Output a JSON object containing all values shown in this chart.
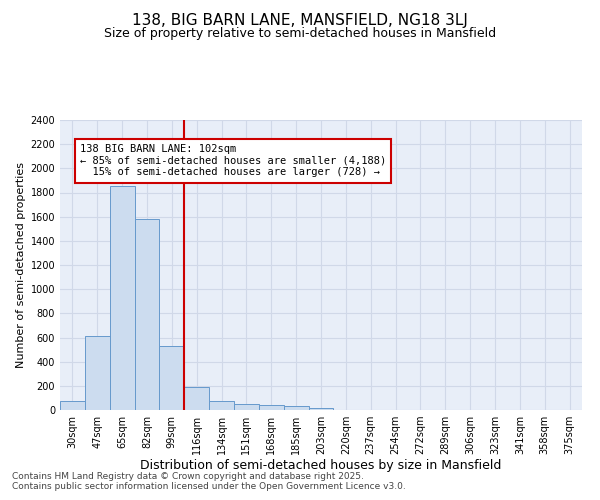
{
  "title1": "138, BIG BARN LANE, MANSFIELD, NG18 3LJ",
  "title2": "Size of property relative to semi-detached houses in Mansfield",
  "xlabel": "Distribution of semi-detached houses by size in Mansfield",
  "ylabel": "Number of semi-detached properties",
  "categories": [
    "30sqm",
    "47sqm",
    "65sqm",
    "82sqm",
    "99sqm",
    "116sqm",
    "134sqm",
    "151sqm",
    "168sqm",
    "185sqm",
    "203sqm",
    "220sqm",
    "237sqm",
    "254sqm",
    "272sqm",
    "289sqm",
    "306sqm",
    "323sqm",
    "341sqm",
    "358sqm",
    "375sqm"
  ],
  "values": [
    75,
    610,
    1850,
    1580,
    530,
    190,
    75,
    50,
    40,
    30,
    15,
    0,
    0,
    0,
    0,
    0,
    0,
    0,
    0,
    0,
    0
  ],
  "bar_color": "#ccdcef",
  "bar_edge_color": "#6699cc",
  "grid_color": "#d0d8e8",
  "bg_color": "#e8eef8",
  "vline_color": "#cc0000",
  "annotation_line1": "138 BIG BARN LANE: 102sqm",
  "annotation_line2": "← 85% of semi-detached houses are smaller (4,188)",
  "annotation_line3": "  15% of semi-detached houses are larger (728) →",
  "annotation_box_color": "#cc0000",
  "annotation_bg": "#ffffff",
  "footer1": "Contains HM Land Registry data © Crown copyright and database right 2025.",
  "footer2": "Contains public sector information licensed under the Open Government Licence v3.0.",
  "ylim": [
    0,
    2400
  ],
  "yticks": [
    0,
    200,
    400,
    600,
    800,
    1000,
    1200,
    1400,
    1600,
    1800,
    2000,
    2200,
    2400
  ],
  "title1_fontsize": 11,
  "title2_fontsize": 9,
  "xlabel_fontsize": 9,
  "ylabel_fontsize": 8,
  "tick_fontsize": 7,
  "annotation_fontsize": 7.5,
  "footer_fontsize": 6.5
}
